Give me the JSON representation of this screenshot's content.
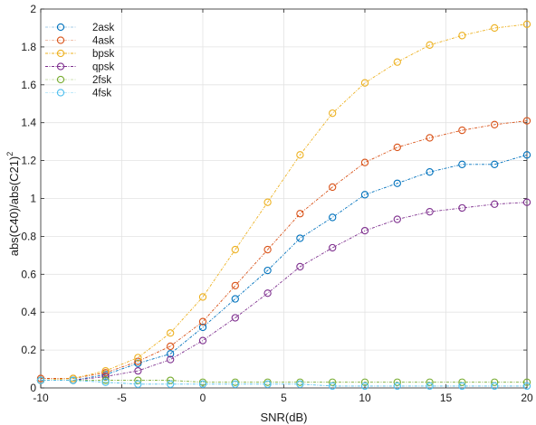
{
  "chart_data": {
    "type": "line",
    "title": "",
    "xlabel": "SNR(dB)",
    "ylabel_main": "abs(C40)/abs(C21)",
    "ylabel_sup": "2",
    "xlim": [
      -10,
      20
    ],
    "ylim": [
      0,
      2
    ],
    "xticks": [
      -10,
      -5,
      0,
      5,
      10,
      15,
      20
    ],
    "xtick_labels": [
      "-10",
      "-5",
      "0",
      "5",
      "10",
      "15",
      "20"
    ],
    "yticks": [
      0,
      0.2,
      0.4,
      0.6,
      0.8,
      1,
      1.2,
      1.4,
      1.6,
      1.8,
      2
    ],
    "ytick_labels": [
      "0",
      "0.2",
      "0.4",
      "0.6",
      "0.8",
      "1",
      "1.2",
      "1.4",
      "1.6",
      "1.8",
      "2"
    ],
    "grid": true,
    "legend_position": "top-left",
    "x": [
      -10,
      -8,
      -6,
      -4,
      -2,
      0,
      2,
      4,
      6,
      8,
      10,
      12,
      14,
      16,
      18,
      20
    ],
    "series": [
      {
        "name": "2ask",
        "color": "#0072BD",
        "values": [
          0.04,
          0.04,
          0.07,
          0.13,
          0.18,
          0.32,
          0.47,
          0.62,
          0.79,
          0.9,
          1.02,
          1.08,
          1.14,
          1.18,
          1.18,
          1.23
        ]
      },
      {
        "name": "4ask",
        "color": "#D95319",
        "values": [
          0.05,
          0.05,
          0.08,
          0.14,
          0.22,
          0.35,
          0.54,
          0.73,
          0.92,
          1.06,
          1.19,
          1.27,
          1.32,
          1.36,
          1.39,
          1.41
        ]
      },
      {
        "name": "bpsk",
        "color": "#EDB120",
        "values": [
          0.04,
          0.05,
          0.09,
          0.16,
          0.29,
          0.48,
          0.73,
          0.98,
          1.23,
          1.45,
          1.61,
          1.72,
          1.81,
          1.86,
          1.9,
          1.92
        ]
      },
      {
        "name": "qpsk",
        "color": "#7E2F8E",
        "values": [
          0.04,
          0.04,
          0.06,
          0.09,
          0.15,
          0.25,
          0.37,
          0.5,
          0.64,
          0.74,
          0.83,
          0.89,
          0.93,
          0.95,
          0.97,
          0.98
        ]
      },
      {
        "name": "2fsk",
        "color": "#77AC30",
        "values": [
          0.04,
          0.04,
          0.04,
          0.04,
          0.04,
          0.03,
          0.03,
          0.03,
          0.03,
          0.03,
          0.03,
          0.03,
          0.03,
          0.03,
          0.03,
          0.03
        ]
      },
      {
        "name": "4fsk",
        "color": "#4DBEEE",
        "values": [
          0.04,
          0.04,
          0.03,
          0.02,
          0.02,
          0.02,
          0.02,
          0.02,
          0.02,
          0.01,
          0.01,
          0.01,
          0.01,
          0.01,
          0.01,
          0.01
        ]
      }
    ]
  }
}
